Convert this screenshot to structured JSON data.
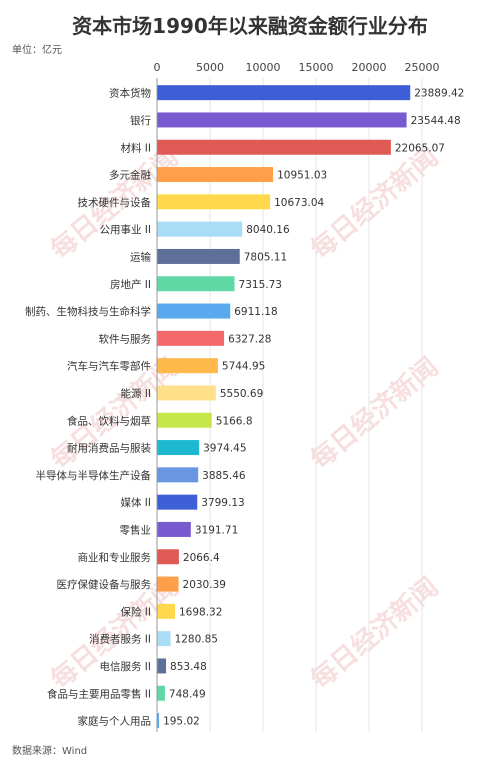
{
  "page": {
    "title": "资本市场1990年以来融资金额行业分布",
    "unit": "单位：亿元",
    "source": "数据来源：Wind",
    "watermark": "每日经济新闻"
  },
  "chart_data": {
    "type": "bar",
    "orientation": "horizontal",
    "title": "资本市场1990年以来融资金额行业分布",
    "xlim": [
      0,
      25000
    ],
    "xticks": [
      0,
      5000,
      10000,
      15000,
      20000,
      25000
    ],
    "grid": true,
    "categories": [
      "资本货物",
      "银行",
      "材料 II",
      "多元金融",
      "技术硬件与设备",
      "公用事业 II",
      "运输",
      "房地产 II",
      "制药、生物科技与生命科学",
      "软件与服务",
      "汽车与汽车零部件",
      "能源 II",
      "食品、饮料与烟草",
      "耐用消费品与服装",
      "半导体与半导体生产设备",
      "媒体 II",
      "零售业",
      "商业和专业服务",
      "医疗保健设备与服务",
      "保险 II",
      "消费者服务 II",
      "电信服务 II",
      "食品与主要用品零售 II",
      "家庭与个人用品"
    ],
    "values": [
      23889.42,
      23544.48,
      22065.07,
      10951.03,
      10673.04,
      8040.16,
      7805.11,
      7315.73,
      6911.18,
      6327.28,
      5744.95,
      5550.69,
      5166.8,
      3974.45,
      3885.46,
      3799.13,
      3191.71,
      2066.4,
      2030.39,
      1698.32,
      1280.85,
      853.48,
      748.49,
      195.02
    ],
    "value_labels": [
      "23889.42",
      "23544.48",
      "22065.07",
      "10951.03",
      "10673.04",
      "8040.16",
      "7805.11",
      "7315.73",
      "6911.18",
      "6327.28",
      "5744.95",
      "5550.69",
      "5166.8",
      "3974.45",
      "3885.46",
      "3799.13",
      "3191.71",
      "2066.4",
      "2030.39",
      "1698.32",
      "1280.85",
      "853.48",
      "748.49",
      "195.02"
    ],
    "colors": [
      "#3f5fd6",
      "#7a5ad0",
      "#e05a55",
      "#ff9f4a",
      "#ffd84d",
      "#a9dcf5",
      "#5e6f9a",
      "#5fd8a4",
      "#5aa9ef",
      "#f46a6a",
      "#ffb84a",
      "#ffe08a",
      "#c7e64a",
      "#1fb8d1",
      "#6996e0",
      "#3f5fd6",
      "#7a5ad0",
      "#e05a55",
      "#ff9f4a",
      "#ffd84d",
      "#a9dcf5",
      "#5e6f9a",
      "#5fd8a4",
      "#5aa9ef"
    ]
  }
}
